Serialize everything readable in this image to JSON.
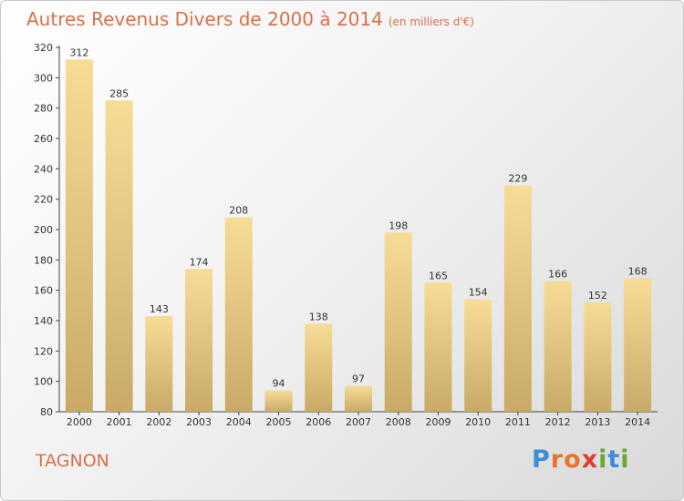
{
  "title": "Autres Revenus Divers de 2000 à 2014",
  "subtitle": "(en milliers d'€)",
  "commune": "TAGNON",
  "logo": {
    "letters": [
      "P",
      "r",
      "o",
      "x",
      "i",
      "t",
      "i"
    ],
    "colors": [
      "#3a8fd6",
      "#e8742a",
      "#e8742a",
      "#e23c2c",
      "#6aa832",
      "#3a8fd6",
      "#6aa832"
    ]
  },
  "colors": {
    "title": "#d9704a",
    "bar_light": "#f7dc96",
    "bar_dark": "#c8aa66"
  },
  "chart_data": {
    "type": "bar",
    "categories": [
      "2000",
      "2001",
      "2002",
      "2003",
      "2004",
      "2005",
      "2006",
      "2007",
      "2008",
      "2009",
      "2010",
      "2011",
      "2012",
      "2013",
      "2014"
    ],
    "values": [
      312,
      285,
      143,
      174,
      208,
      94,
      138,
      97,
      198,
      165,
      154,
      229,
      166,
      152,
      168
    ],
    "ylim": [
      80,
      320
    ],
    "yticks": [
      80,
      100,
      120,
      140,
      160,
      180,
      200,
      220,
      240,
      260,
      280,
      300,
      320
    ],
    "grid": false,
    "legend": "none"
  }
}
